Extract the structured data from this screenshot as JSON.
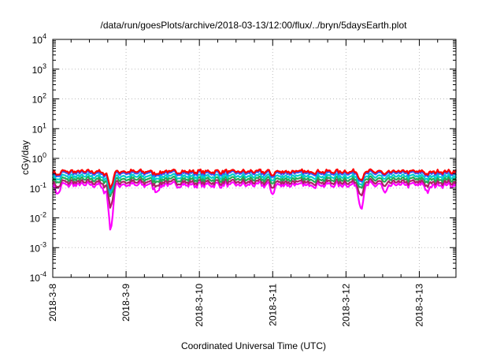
{
  "chart_data": {
    "type": "line",
    "title": "/data/run/goesPlots/archive/2018-03-13/12:00/flux/../bryn/5daysEarth.plot",
    "xlabel": "Coordinated Universal Time (UTC)",
    "ylabel": "cGy/day",
    "yscale": "log",
    "ylim": [
      0.0001,
      10000
    ],
    "xlim": [
      "2018-03-08 00:00",
      "2018-03-13 12:00"
    ],
    "grid": true,
    "yticks": [
      {
        "base": "10",
        "exp": "-4",
        "value": 0.0001
      },
      {
        "base": "10",
        "exp": "-3",
        "value": 0.001
      },
      {
        "base": "10",
        "exp": "-2",
        "value": 0.01
      },
      {
        "base": "10",
        "exp": "-1",
        "value": 0.1
      },
      {
        "base": "10",
        "exp": "0",
        "value": 1
      },
      {
        "base": "10",
        "exp": "1",
        "value": 10
      },
      {
        "base": "10",
        "exp": "2",
        "value": 100
      },
      {
        "base": "10",
        "exp": "3",
        "value": 1000
      },
      {
        "base": "10",
        "exp": "4",
        "value": 10000
      }
    ],
    "xticks": [
      "2018-3-8",
      "2018-3-9",
      "2018-3-10",
      "2018-3-11",
      "2018-3-12",
      "2018-3-13"
    ],
    "series": [
      {
        "color": "#ff0000",
        "baseline": 0.36
      },
      {
        "color": "#3355ff",
        "baseline": 0.32
      },
      {
        "color": "#00cccc",
        "baseline": 0.25
      },
      {
        "color": "#22aa55",
        "baseline": 0.2
      },
      {
        "color": "#aa2266",
        "baseline": 0.16
      },
      {
        "color": "#ff00ff",
        "baseline": 0.13
      }
    ],
    "dips": [
      {
        "x": "2018-03-08 01:30",
        "value": 0.06
      },
      {
        "x": "2018-03-08 17:00",
        "value": 0.07
      },
      {
        "x": "2018-03-08 19:00",
        "value": 0.003
      },
      {
        "x": "2018-03-09 10:00",
        "value": 0.07
      },
      {
        "x": "2018-03-11 00:00",
        "value": 0.07
      },
      {
        "x": "2018-03-12 05:00",
        "value": 0.016
      },
      {
        "x": "2018-03-12 13:00",
        "value": 0.06
      },
      {
        "x": "2018-03-13 03:00",
        "value": 0.07
      }
    ]
  }
}
